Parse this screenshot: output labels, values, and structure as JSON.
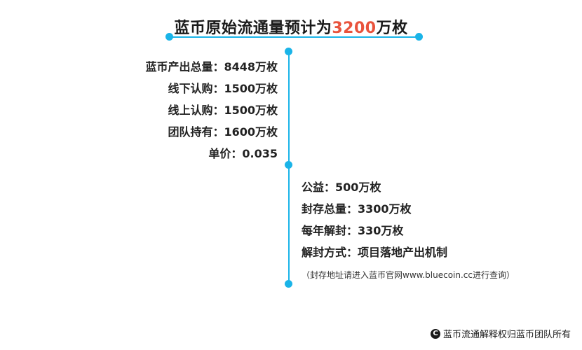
{
  "title": {
    "prefix": "蓝币原始流通量预计为",
    "highlight": "3200",
    "suffix": "万枚"
  },
  "left_items": [
    "蓝币产出总量：8448万枚",
    "线下认购：1500万枚",
    "线上认购：1500万枚",
    "团队持有：1600万枚",
    "单价：0.035"
  ],
  "right_items": [
    "公益：500万枚",
    "封存总量：3300万枚",
    "每年解封：330万枚",
    "解封方式：项目落地产出机制"
  ],
  "note": "（封存地址请进入蓝币官网www.bluecoin.cc进行查询）",
  "footer": {
    "icon": "copyright-icon",
    "icon_glyph": "C",
    "text": "蓝币流通解释权归蓝币团队所有"
  },
  "colors": {
    "accent": "#e9533c",
    "line": "#1ab4e8"
  }
}
